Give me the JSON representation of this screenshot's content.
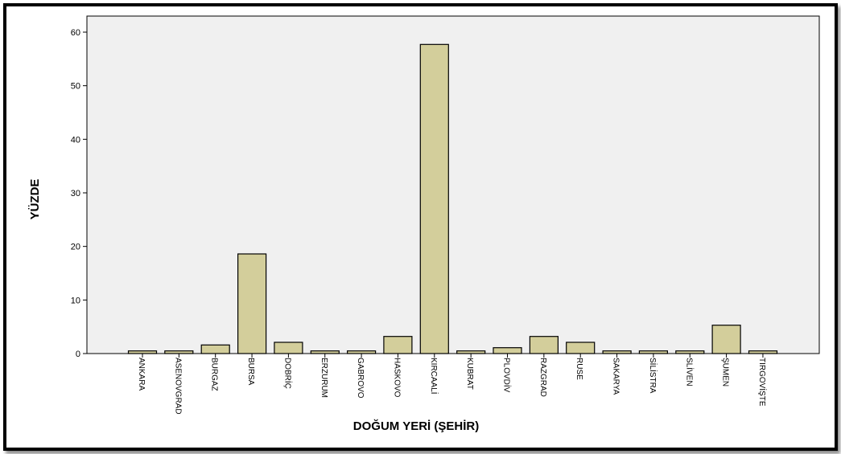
{
  "chart_data": {
    "type": "bar",
    "title": "",
    "xlabel": "DOĞUM YERİ (ŞEHİR)",
    "ylabel": "YÜZDE",
    "ylim": [
      0,
      63
    ],
    "yticks": [
      0,
      10,
      20,
      30,
      40,
      50,
      60
    ],
    "grid": false,
    "categories": [
      "ANKARA",
      "ASENOVGRAD",
      "BURGAZ",
      "BURSA",
      "DOBRİÇ",
      "ERZURUM",
      "GABROVO",
      "HASKOVO",
      "KIRCAALİ",
      "KUBRAT",
      "PLOVDİV",
      "RAZGRAD",
      "RUSE",
      "SAKARYA",
      "SİLİSTRA",
      "SLİVEN",
      "ŞUMEN",
      "TIRGOVİŞTE"
    ],
    "values": [
      0.5,
      0.5,
      1.6,
      18.6,
      2.1,
      0.5,
      0.5,
      3.2,
      57.7,
      0.5,
      1.1,
      3.2,
      2.1,
      0.5,
      0.5,
      0.5,
      5.3,
      0.5
    ],
    "colors": {
      "bar": "#d3ce9b",
      "bar_stroke": "#000000",
      "plot_bg": "#f0f0f0"
    }
  }
}
